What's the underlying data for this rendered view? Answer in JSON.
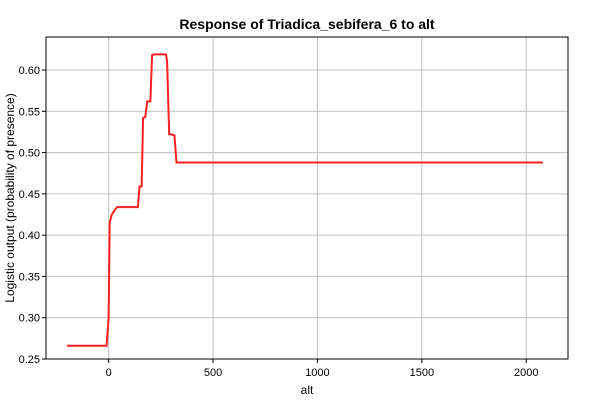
{
  "chart_data": {
    "type": "line",
    "title": "Response of Triadica_sebifera_6 to alt",
    "xlabel": "alt",
    "ylabel": "Logistic output (probability of presence)",
    "xlim": [
      -300,
      2200
    ],
    "ylim": [
      0.25,
      0.64
    ],
    "xticks": [
      0,
      500,
      1000,
      1500,
      2000
    ],
    "yticks": [
      0.25,
      0.3,
      0.35,
      0.4,
      0.45,
      0.5,
      0.55,
      0.6
    ],
    "grid": true,
    "line_color": "#ff2020",
    "series": [
      {
        "x": [
          -200,
          -10,
          0,
          5,
          15,
          40,
          60,
          100,
          140,
          148,
          158,
          165,
          175,
          185,
          200,
          208,
          218,
          230,
          260,
          275,
          280,
          290,
          300,
          315,
          325,
          400,
          800,
          1200,
          1600,
          2000,
          2080
        ],
        "y": [
          0.266,
          0.266,
          0.3,
          0.415,
          0.425,
          0.434,
          0.434,
          0.434,
          0.434,
          0.459,
          0.459,
          0.542,
          0.543,
          0.562,
          0.562,
          0.618,
          0.619,
          0.619,
          0.619,
          0.619,
          0.61,
          0.522,
          0.522,
          0.521,
          0.488,
          0.488,
          0.488,
          0.488,
          0.488,
          0.488,
          0.488
        ]
      }
    ]
  }
}
